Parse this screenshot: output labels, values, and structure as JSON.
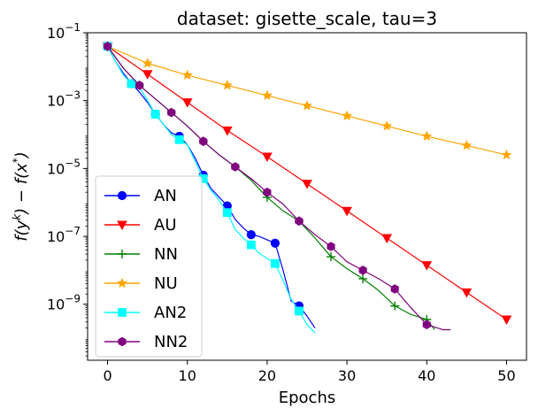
{
  "chart_data": {
    "type": "line",
    "title": "dataset: gisette_scale, tau=3",
    "xlabel": "Epochs",
    "ylabel": "f(y^k) − f(x*)",
    "yscale": "log",
    "xlim": [
      -2.5,
      52.5
    ],
    "ylim_log10": [
      -10.65,
      -1.0
    ],
    "x_ticks": [
      0,
      10,
      20,
      30,
      40,
      50
    ],
    "x_tick_labels": [
      "0",
      "10",
      "20",
      "30",
      "40",
      "50"
    ],
    "y_ticks_log10": [
      -1,
      -3,
      -5,
      -7,
      -9
    ],
    "y_tick_base": "10",
    "y_tick_exponents": [
      "−1",
      "−3",
      "−5",
      "−7",
      "−9"
    ],
    "legend": {
      "location": "lower-left",
      "entries": [
        "AN",
        "AU",
        "NN",
        "NU",
        "AN2",
        "NN2"
      ]
    },
    "series": [
      {
        "name": "AN",
        "color": "#0000ff",
        "marker": "circle",
        "x": [
          0,
          1,
          2,
          3,
          4,
          5,
          6,
          7,
          8,
          9,
          10,
          11,
          12,
          13,
          14,
          15,
          16,
          17,
          18,
          19,
          20,
          21,
          22,
          23,
          24,
          25,
          26
        ],
        "log10y": [
          -1.4,
          -1.85,
          -2.2,
          -2.5,
          -2.75,
          -3.05,
          -3.4,
          -3.7,
          -3.95,
          -4.05,
          -4.3,
          -4.7,
          -5.2,
          -5.6,
          -5.85,
          -6.1,
          -6.5,
          -6.75,
          -6.95,
          -7.0,
          -7.1,
          -7.2,
          -8.0,
          -8.9,
          -9.05,
          -9.35,
          -9.7
        ],
        "markers": [
          0,
          3,
          6,
          9,
          12,
          15,
          18,
          21,
          24
        ]
      },
      {
        "name": "AU",
        "color": "#ff0000",
        "marker": "triangle-down",
        "x": [
          0,
          5,
          10,
          15,
          20,
          25,
          30,
          35,
          40,
          45,
          50
        ],
        "log10y": [
          -1.4,
          -2.22,
          -3.05,
          -3.88,
          -4.65,
          -5.45,
          -6.25,
          -7.05,
          -7.85,
          -8.65,
          -9.45
        ],
        "markers": [
          0,
          5,
          10,
          15,
          20,
          25,
          30,
          35,
          40,
          45,
          50
        ]
      },
      {
        "name": "NN",
        "color": "#008000",
        "marker": "plus",
        "x": [
          0,
          2,
          4,
          6,
          8,
          10,
          12,
          14,
          16,
          18,
          20,
          22,
          24,
          26,
          28,
          30,
          32,
          34,
          36,
          38,
          40,
          41
        ],
        "log10y": [
          -1.4,
          -2.05,
          -2.55,
          -2.95,
          -3.35,
          -3.75,
          -4.2,
          -4.6,
          -4.95,
          -5.35,
          -5.85,
          -6.25,
          -6.55,
          -7.05,
          -7.6,
          -7.95,
          -8.25,
          -8.6,
          -9.05,
          -9.3,
          -9.45,
          -9.75
        ],
        "markers": [
          0,
          4,
          8,
          12,
          16,
          20,
          24,
          28,
          32,
          36,
          40
        ]
      },
      {
        "name": "NU",
        "color": "#ffa500",
        "marker": "star",
        "x": [
          0,
          5,
          10,
          15,
          20,
          25,
          30,
          35,
          40,
          45,
          50
        ],
        "log10y": [
          -1.4,
          -1.9,
          -2.25,
          -2.55,
          -2.85,
          -3.15,
          -3.45,
          -3.75,
          -4.05,
          -4.32,
          -4.6
        ],
        "markers": [
          0,
          5,
          10,
          15,
          20,
          25,
          30,
          35,
          40,
          45,
          50
        ]
      },
      {
        "name": "AN2",
        "color": "#00ffff",
        "marker": "square",
        "x": [
          0,
          1,
          2,
          3,
          4,
          5,
          6,
          7,
          8,
          9,
          10,
          11,
          12,
          13,
          14,
          15,
          16,
          17,
          18,
          19,
          20,
          21,
          22,
          23,
          24,
          25,
          26
        ],
        "log10y": [
          -1.4,
          -1.85,
          -2.25,
          -2.5,
          -2.6,
          -3.0,
          -3.4,
          -3.7,
          -4.0,
          -4.15,
          -4.3,
          -4.8,
          -5.3,
          -5.65,
          -5.95,
          -6.3,
          -6.8,
          -7.05,
          -7.25,
          -7.5,
          -7.65,
          -7.8,
          -8.3,
          -8.85,
          -9.2,
          -9.6,
          -9.85
        ],
        "markers": [
          0,
          3,
          6,
          9,
          12,
          15,
          18,
          21,
          24
        ]
      },
      {
        "name": "NN2",
        "color": "#800080",
        "marker": "hexagon",
        "x": [
          0,
          2,
          4,
          6,
          8,
          10,
          12,
          14,
          16,
          18,
          20,
          22,
          24,
          26,
          28,
          30,
          32,
          34,
          36,
          38,
          40,
          42,
          43
        ],
        "log10y": [
          -1.4,
          -2.05,
          -2.55,
          -2.95,
          -3.35,
          -3.75,
          -4.2,
          -4.6,
          -4.95,
          -5.3,
          -5.7,
          -6.05,
          -6.55,
          -6.95,
          -7.3,
          -7.75,
          -8.0,
          -8.25,
          -8.55,
          -9.1,
          -9.6,
          -9.75,
          -9.75
        ],
        "markers": [
          0,
          4,
          8,
          12,
          16,
          20,
          24,
          28,
          32,
          36,
          40
        ]
      }
    ]
  }
}
